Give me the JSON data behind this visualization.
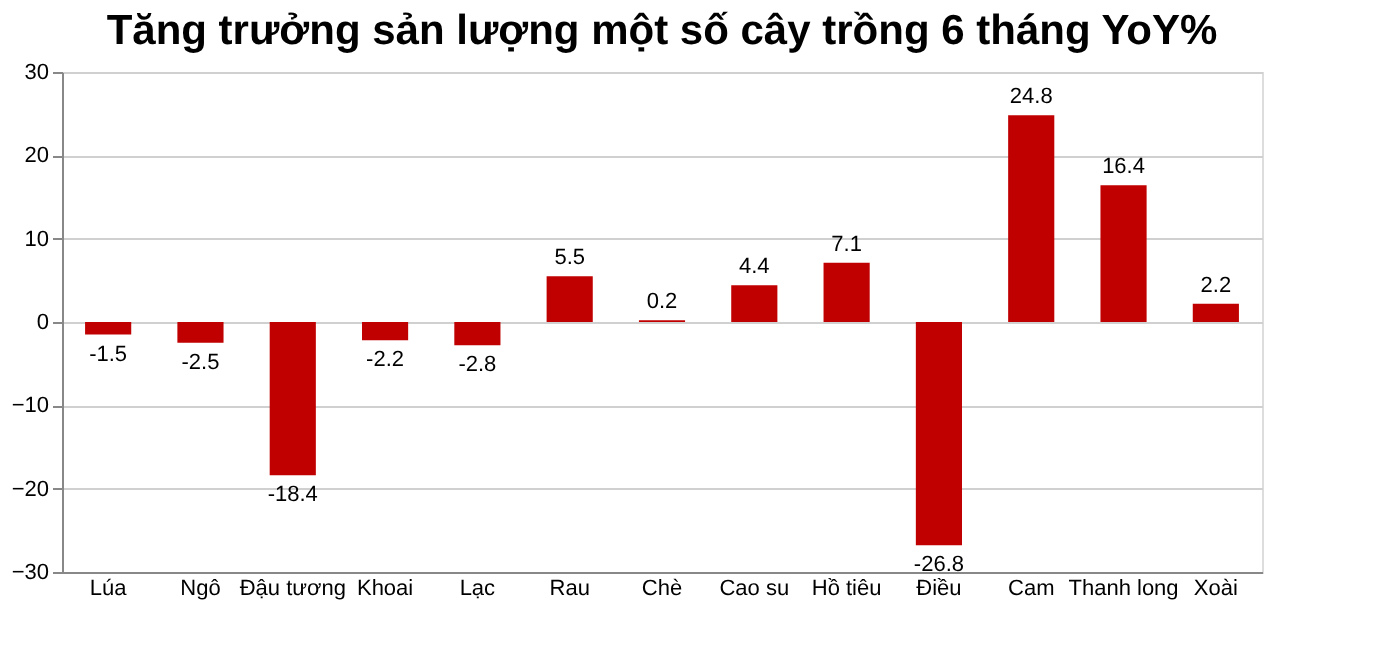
{
  "chart_data": {
    "type": "bar",
    "title": "Tăng trưởng sản lượng một số cây trồng 6 tháng YoY%",
    "categories": [
      "Lúa",
      "Ngô",
      "Đậu tương",
      "Khoai",
      "Lạc",
      "Rau",
      "Chè",
      "Cao su",
      "Hồ tiêu",
      "Điều",
      "Cam",
      "Thanh long",
      "Xoài"
    ],
    "values": [
      -1.5,
      -2.5,
      -18.4,
      -2.2,
      -2.8,
      5.5,
      0.2,
      4.4,
      7.1,
      -26.8,
      24.8,
      16.4,
      2.2
    ],
    "color": "#c00000",
    "ylim": [
      -30,
      30
    ],
    "yticks": [
      -30,
      -20,
      -10,
      0,
      10,
      20,
      30
    ],
    "grid": "y",
    "data_labels": true
  }
}
